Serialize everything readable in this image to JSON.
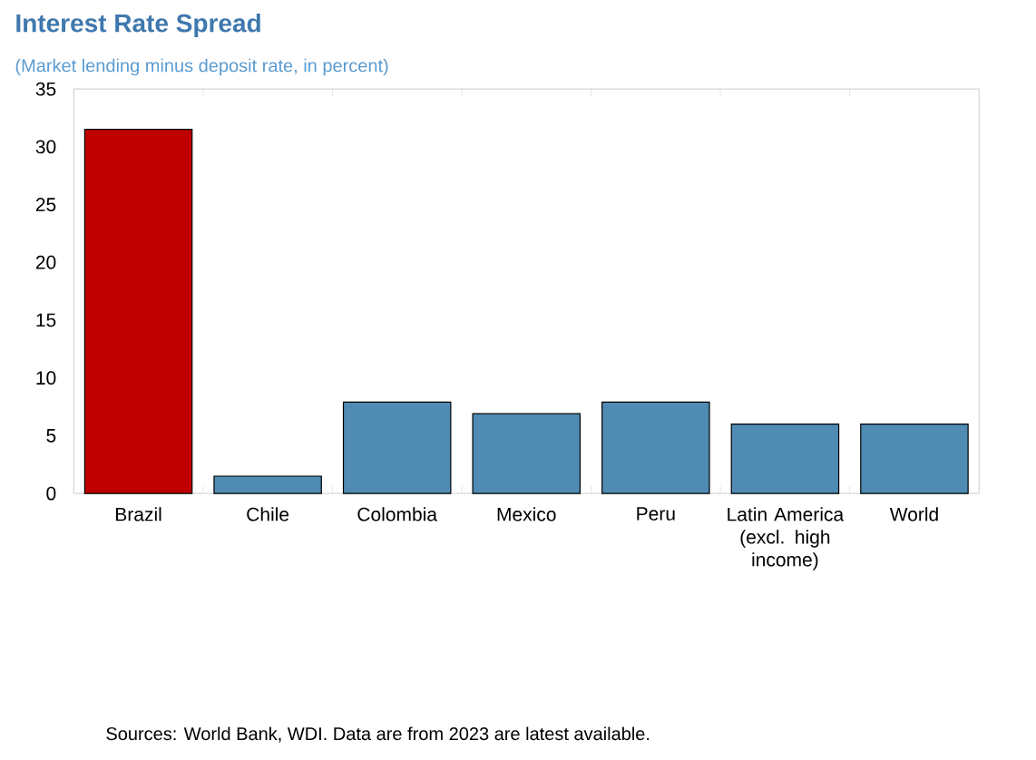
{
  "chart_data": {
    "type": "bar",
    "title": "Interest Rate Spread",
    "subtitle": "(Market lending minus deposit rate, in percent)",
    "categories": [
      "Brazil",
      "Chile",
      "Colombia",
      "Mexico",
      "Peru",
      "Latin America (excl. high income)",
      "World"
    ],
    "values": [
      31.5,
      1.5,
      7.9,
      6.9,
      7.9,
      6.0,
      6.0
    ],
    "colors": [
      "#c00000",
      "#4f8bb3",
      "#4f8bb3",
      "#4f8bb3",
      "#4f8bb3",
      "#4f8bb3",
      "#4f8bb3"
    ],
    "ylim": [
      0,
      35
    ],
    "yticks": [
      0,
      5,
      10,
      15,
      20,
      25,
      30,
      35
    ],
    "annotations": [
      "Sources: World Bank, WDI. Data are from 2023 are latest available."
    ]
  }
}
